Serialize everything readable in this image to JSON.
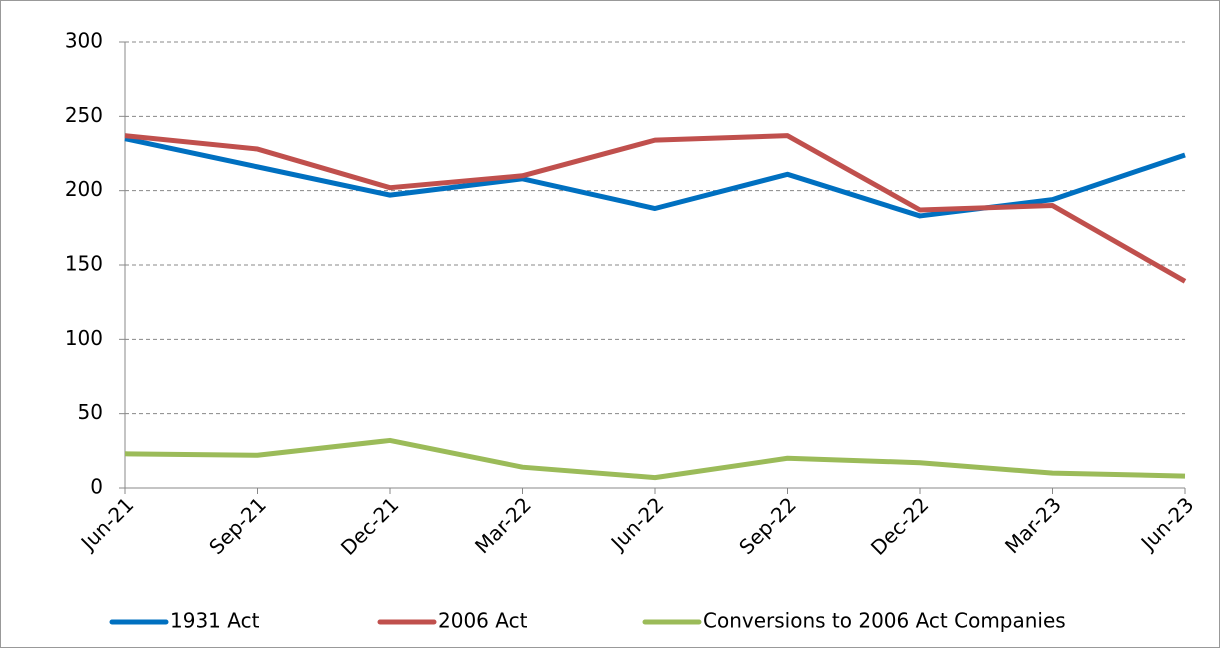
{
  "chart_data": {
    "type": "line",
    "categories": [
      "Jun-21",
      "Sep-21",
      "Dec-21",
      "Mar-22",
      "Jun-22",
      "Sep-22",
      "Dec-22",
      "Mar-23",
      "Jun-23"
    ],
    "series": [
      {
        "name": "1931 Act",
        "color": "#0070c0",
        "values": [
          235,
          216,
          197,
          208,
          188,
          211,
          183,
          194,
          224
        ]
      },
      {
        "name": "2006 Act",
        "color": "#c0504d",
        "values": [
          237,
          228,
          202,
          210,
          234,
          237,
          187,
          190,
          139
        ]
      },
      {
        "name": "Conversions to 2006 Act Companies",
        "color": "#9bbb59",
        "values": [
          23,
          22,
          32,
          14,
          7,
          20,
          17,
          10,
          8
        ]
      }
    ],
    "ylim": [
      0,
      300
    ],
    "yticks": [
      0,
      50,
      100,
      150,
      200,
      250,
      300
    ],
    "grid": true,
    "legend": "bottom"
  }
}
